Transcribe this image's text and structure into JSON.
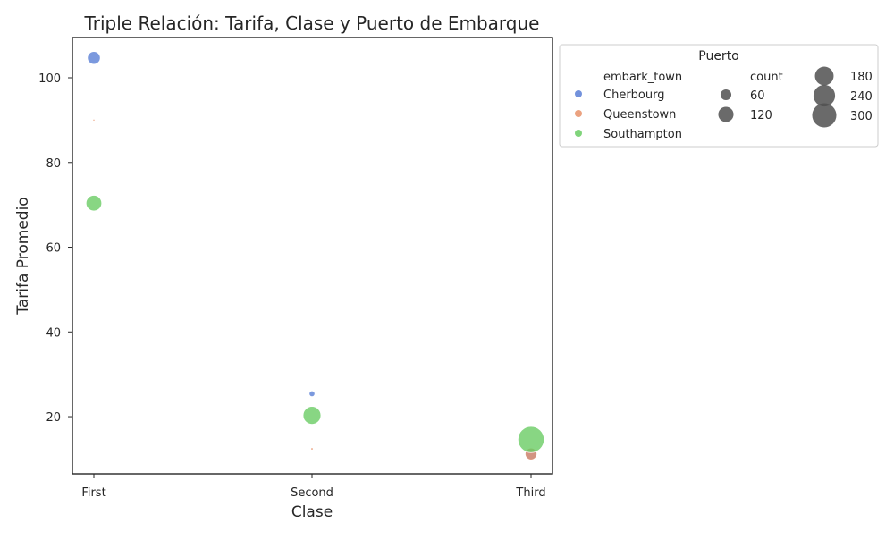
{
  "chart_data": {
    "type": "scatter",
    "title": "Triple Relación: Tarifa, Clase y Puerto de Embarque",
    "xlabel": "Clase",
    "ylabel": "Tarifa Promedio",
    "categories": [
      "First",
      "Second",
      "Third"
    ],
    "ylim": [
      6.5,
      109.5
    ],
    "yticks": [
      20,
      40,
      60,
      80,
      100
    ],
    "grid": false,
    "legend_placement": "outside-right",
    "size_range": [
      0,
      300
    ],
    "series": [
      {
        "name": "Cherbourg",
        "color": "#5a7fd6",
        "points": [
          {
            "x": "First",
            "y": 104.7,
            "count": 85
          },
          {
            "x": "Second",
            "y": 25.4,
            "count": 17
          },
          {
            "x": "Third",
            "y": 11.2,
            "count": 66
          }
        ]
      },
      {
        "name": "Queenstown",
        "color": "#e8926a",
        "points": [
          {
            "x": "First",
            "y": 90.0,
            "count": 2
          },
          {
            "x": "Second",
            "y": 12.4,
            "count": 3
          },
          {
            "x": "Third",
            "y": 11.2,
            "count": 72
          }
        ]
      },
      {
        "name": "Southampton",
        "color": "#6acc64",
        "points": [
          {
            "x": "First",
            "y": 70.4,
            "count": 127
          },
          {
            "x": "Second",
            "y": 20.3,
            "count": 164
          },
          {
            "x": "Third",
            "y": 14.6,
            "count": 353
          }
        ]
      }
    ],
    "legend": {
      "title": "Puerto",
      "hue_title": "embark_town",
      "size_title": "count",
      "size_entries": [
        60,
        120,
        180,
        240,
        300
      ],
      "size_labels": [
        "60",
        "120",
        "180",
        "240",
        "300"
      ]
    }
  }
}
